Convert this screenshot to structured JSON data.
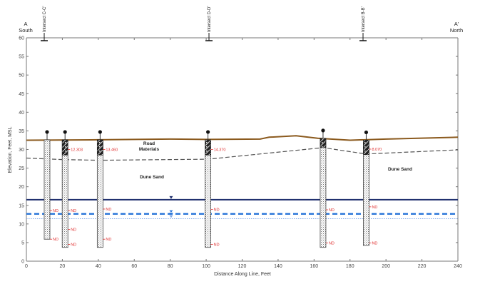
{
  "chart_data": {
    "type": "cross-section",
    "title": "",
    "xlabel": "Distance Along Line, Feet",
    "ylabel": "Elevation, Feet, MSL",
    "xlim": [
      0,
      240
    ],
    "ylim": [
      0,
      60
    ],
    "x_ticks": [
      0,
      20,
      40,
      60,
      80,
      100,
      120,
      140,
      160,
      180,
      200,
      220,
      240
    ],
    "y_ticks": [
      0,
      5,
      10,
      15,
      20,
      25,
      30,
      35,
      40,
      45,
      50,
      55,
      60
    ],
    "endpoints": {
      "left": {
        "label": "A",
        "direction": "South"
      },
      "right": {
        "label": "A'",
        "direction": "North"
      }
    },
    "intersections": [
      {
        "label": "Intersect C-C'",
        "x": 10
      },
      {
        "label": "Intersect D-D'",
        "x": 102
      },
      {
        "label": "Intersect B-B'",
        "x": 188
      }
    ],
    "ground_surface": {
      "color": "#8B5A1E",
      "points": [
        [
          0,
          32.5
        ],
        [
          40,
          32.6
        ],
        [
          80,
          32.8
        ],
        [
          100,
          32.7
        ],
        [
          130,
          32.8
        ],
        [
          135,
          33.3
        ],
        [
          150,
          33.7
        ],
        [
          162,
          33.0
        ],
        [
          180,
          32.5
        ],
        [
          200,
          32.8
        ],
        [
          240,
          33.3
        ]
      ]
    },
    "contact_line": {
      "label": "Road Materials / Dune Sand contact",
      "color": "#555555",
      "style": "dashed",
      "points": [
        [
          0,
          27.7
        ],
        [
          20,
          27.3
        ],
        [
          40,
          27.1
        ],
        [
          101,
          27.4
        ],
        [
          165,
          30.5
        ],
        [
          189,
          28.8
        ],
        [
          240,
          29.9
        ]
      ]
    },
    "water_levels": [
      {
        "name": "water-level-1",
        "elevation": 16.5,
        "color": "#1F2F6E",
        "style": "solid"
      },
      {
        "name": "water-level-2",
        "elevation": 12.7,
        "color": "#1F6FD8",
        "style": "dashed"
      },
      {
        "name": "water-level-3",
        "elevation": 11.4,
        "color": "#7FA7E8",
        "style": "dotted"
      }
    ],
    "water_markers": [
      {
        "x": 80.5,
        "elevation": 16.5,
        "symbol": "triangle-down",
        "color": "#1F2F6E"
      },
      {
        "x": 80.5,
        "elevation": 12.7,
        "symbol": "level",
        "color": "#1F6FD8"
      },
      {
        "x": 80.5,
        "elevation": 11.4,
        "symbol": "triangle-down",
        "color": "#7FA7E8"
      }
    ],
    "unit_labels": [
      {
        "text": "Road",
        "x": 68.5,
        "elevation": 31.2
      },
      {
        "text": "Materials",
        "x": 68.5,
        "elevation": 29.6
      },
      {
        "text": "Dune Sand",
        "x": 70,
        "elevation": 22.6
      },
      {
        "text": "Dune Sand",
        "x": 208,
        "elevation": 24.7
      }
    ],
    "boreholes": [
      {
        "x": 11.5,
        "top": 32.6,
        "bottom": 5.9,
        "fill_top": null,
        "sample_label": null,
        "nd": [
          13.6,
          5.9
        ]
      },
      {
        "x": 21.5,
        "top": 32.6,
        "bottom": 3.7,
        "fill_top": [
          32.6,
          28.5
        ],
        "sample_label": "12.303",
        "nd": [
          13.6,
          8.5,
          4.5
        ]
      },
      {
        "x": 41,
        "top": 32.6,
        "bottom": 3.7,
        "fill_top": [
          32.6,
          28.5
        ],
        "sample_label": "13.460",
        "nd": [
          14.0,
          5.9
        ]
      },
      {
        "x": 101,
        "top": 32.6,
        "bottom": 3.7,
        "fill_top": [
          32.6,
          28.5
        ],
        "sample_label": "14.370",
        "nd": [
          13.9,
          4.5
        ]
      },
      {
        "x": 165,
        "top": 33.0,
        "bottom": 3.7,
        "fill_top": [
          33.0,
          30.5
        ],
        "sample_label": null,
        "nd": [
          13.8,
          4.9
        ]
      },
      {
        "x": 189,
        "top": 32.5,
        "bottom": 4.2,
        "fill_top": [
          32.5,
          28.6
        ],
        "sample_label": "8.070",
        "nd": [
          14.6,
          4.9
        ]
      }
    ]
  },
  "labels": {
    "left_end": "A",
    "left_dir": "South",
    "right_end": "A'",
    "right_dir": "North",
    "intersect_cc": "Intersect C-C'",
    "intersect_dd": "Intersect D-D'",
    "intersect_bb": "Intersect B-B'",
    "xlabel": "Distance Along Line, Feet",
    "ylabel": "Elevation, Feet, MSL",
    "road": "Road",
    "materials": "Materials",
    "dune_sand": "Dune Sand",
    "nd": "ND"
  }
}
